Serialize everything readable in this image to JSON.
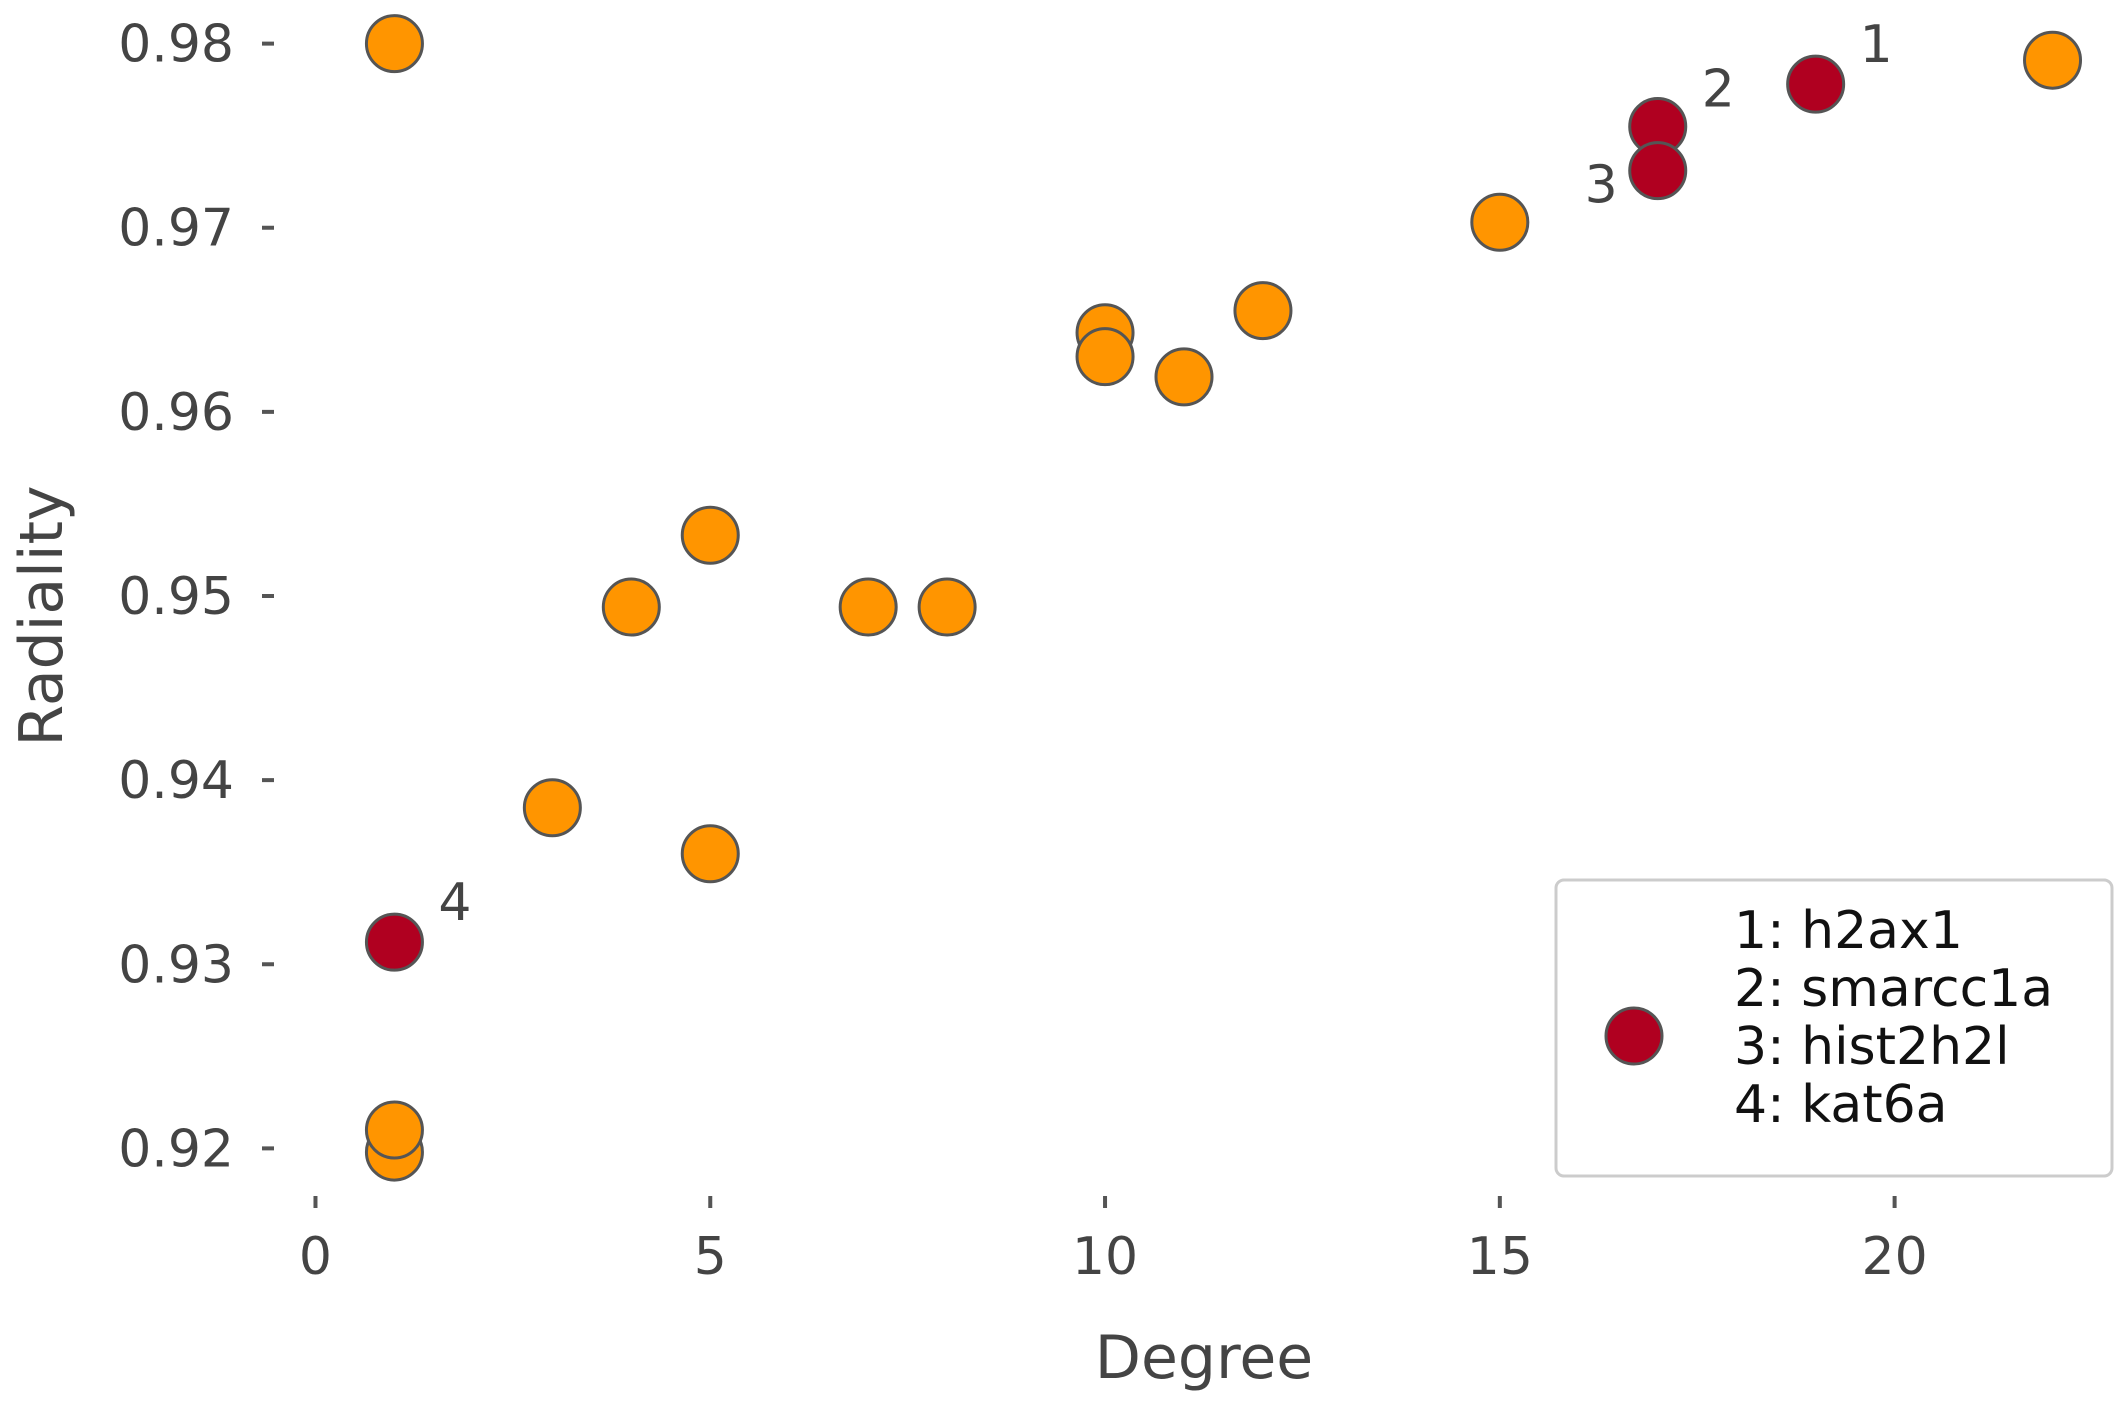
{
  "chart_data": {
    "type": "scatter",
    "title": "",
    "xlabel": "Degree",
    "ylabel": "Radiality",
    "xlim": [
      -0.5,
      22.5
    ],
    "ylim": [
      0.9185,
      0.9815
    ],
    "x_ticks": [
      0,
      5,
      10,
      15,
      20
    ],
    "x_tick_labels": [
      "0",
      "5",
      "10",
      "15",
      "20"
    ],
    "y_ticks": [
      0.92,
      0.93,
      0.94,
      0.95,
      0.96,
      0.97,
      0.98
    ],
    "y_tick_labels": [
      "0.92",
      "0.93",
      "0.94",
      "0.95",
      "0.96",
      "0.97",
      "0.98"
    ],
    "grid": false,
    "legend_position": "bottom-right",
    "colors": {
      "background_points": "#ff9500",
      "highlight_points": "#b00020",
      "marker_edge": "#555555",
      "axis_text": "#444444"
    },
    "series": [
      {
        "color": "#ff9500",
        "x": [
          1,
          1,
          1,
          3,
          4,
          5,
          5,
          7,
          8,
          10,
          10,
          11,
          12,
          15,
          22
        ],
        "y": [
          0.98,
          0.9198,
          0.921,
          0.9385,
          0.9494,
          0.9533,
          0.936,
          0.9494,
          0.9494,
          0.9643,
          0.963,
          0.9619,
          0.9655,
          0.9703,
          0.9791
        ]
      },
      {
        "color": "#b00020",
        "x": [
          19,
          17,
          17,
          1
        ],
        "y": [
          0.9778,
          0.9755,
          0.9731,
          0.9312
        ],
        "point_labels": [
          "1",
          "2",
          "3",
          "4"
        ]
      }
    ],
    "annotations": [
      {
        "text": "1",
        "x": 19,
        "y": 0.9778,
        "offset": "upper-right"
      },
      {
        "text": "2",
        "x": 17,
        "y": 0.9755,
        "offset": "right"
      },
      {
        "text": "3",
        "x": 17,
        "y": 0.9731,
        "offset": "left"
      },
      {
        "text": "4",
        "x": 1,
        "y": 0.9312,
        "offset": "upper-right"
      }
    ],
    "legend": {
      "marker_color": "#b00020",
      "lines": [
        "1: h2ax1",
        "2: smarcc1a",
        "3: hist2h2l",
        "4: kat6a"
      ]
    }
  }
}
